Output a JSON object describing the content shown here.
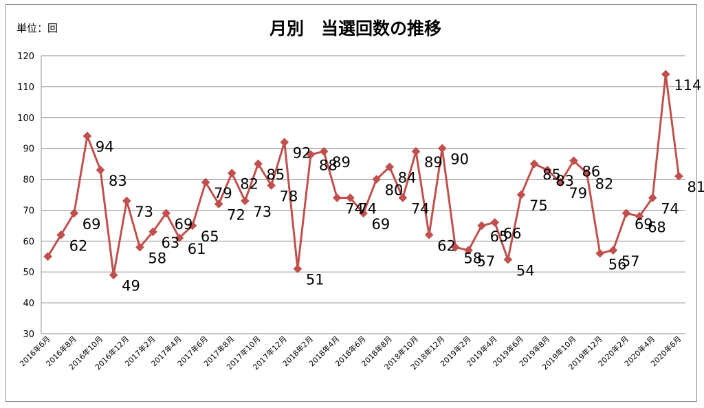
{
  "header": {
    "unit_label": "単位：回",
    "title": "月別　当選回数の推移"
  },
  "colors": {
    "series": "#c0504d",
    "grid": "#8c8c8c",
    "axis": "#8c8c8c"
  },
  "chart_data": {
    "type": "line",
    "title": "月別　当選回数の推移",
    "ylim": [
      30,
      120
    ],
    "yticks": [
      30,
      40,
      50,
      60,
      70,
      80,
      90,
      100,
      110,
      120
    ],
    "grid": true,
    "legend": "none",
    "x_tick_labels": [
      "2016年6月",
      "2016年8月",
      "2016年10月",
      "2016年12月",
      "2017年2月",
      "2017年4月",
      "2017年6月",
      "2017年8月",
      "2017年10月",
      "2017年12月",
      "2018年2月",
      "2018年4月",
      "2018年6月",
      "2018年8月",
      "2018年10月",
      "2018年12月",
      "2019年2月",
      "2019年4月",
      "2019年6月",
      "2019年8月",
      "2019年10月",
      "2019年12月",
      "2020年2月",
      "2020年4月",
      "2020年6月"
    ],
    "series": [
      {
        "values": [
          55,
          62,
          69,
          94,
          83,
          49,
          73,
          58,
          63,
          69,
          61,
          65,
          79,
          72,
          82,
          73,
          85,
          78,
          92,
          51,
          88,
          89,
          74,
          74,
          69,
          80,
          84,
          74,
          89,
          62,
          90,
          58,
          57,
          65,
          66,
          54,
          75,
          85,
          83,
          79,
          86,
          82,
          56,
          57,
          69,
          68,
          74,
          114,
          81
        ]
      }
    ]
  }
}
